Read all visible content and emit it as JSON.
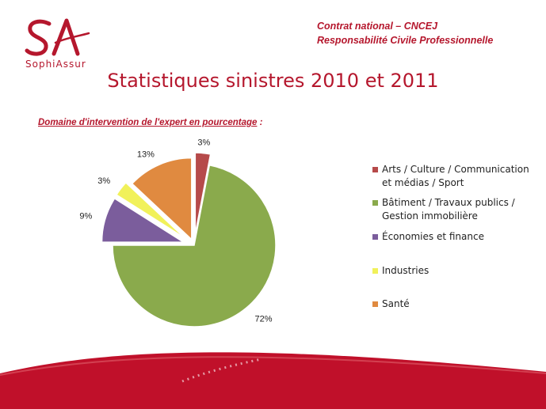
{
  "logo": {
    "monogram": "SA",
    "name": "SophiAssur",
    "color": "#b5172d"
  },
  "header": {
    "line1": "Contrat national – CNCEJ",
    "line2": "Responsabilité Civile Professionnelle"
  },
  "title": "Statistiques sinistres 2010 et 2011",
  "subtitle": {
    "text": "Domaine d'intervention de l'expert en pourcentage",
    "suffix": " :"
  },
  "chart_data": {
    "type": "pie",
    "title": "",
    "legend_position": "right",
    "slices": [
      {
        "label": "Arts / Culture / Communication et médias / Sport",
        "value": 3,
        "value_label": "3%",
        "color": "#b64a4a"
      },
      {
        "label": "Bâtiment / Travaux publics / Gestion immobilière",
        "value": 72,
        "value_label": "72%",
        "color": "#8aaa4c"
      },
      {
        "label": "Économies et finance",
        "value": 9,
        "value_label": "9%",
        "color": "#7b5d9c"
      },
      {
        "label": "Industries",
        "value": 3,
        "value_label": "3%",
        "color": "#f1f15a"
      },
      {
        "label": "Santé",
        "value": 13,
        "value_label": "13%",
        "color": "#e08a40"
      }
    ]
  },
  "colors": {
    "accent": "#b5172d",
    "footer": "#c0102a"
  }
}
